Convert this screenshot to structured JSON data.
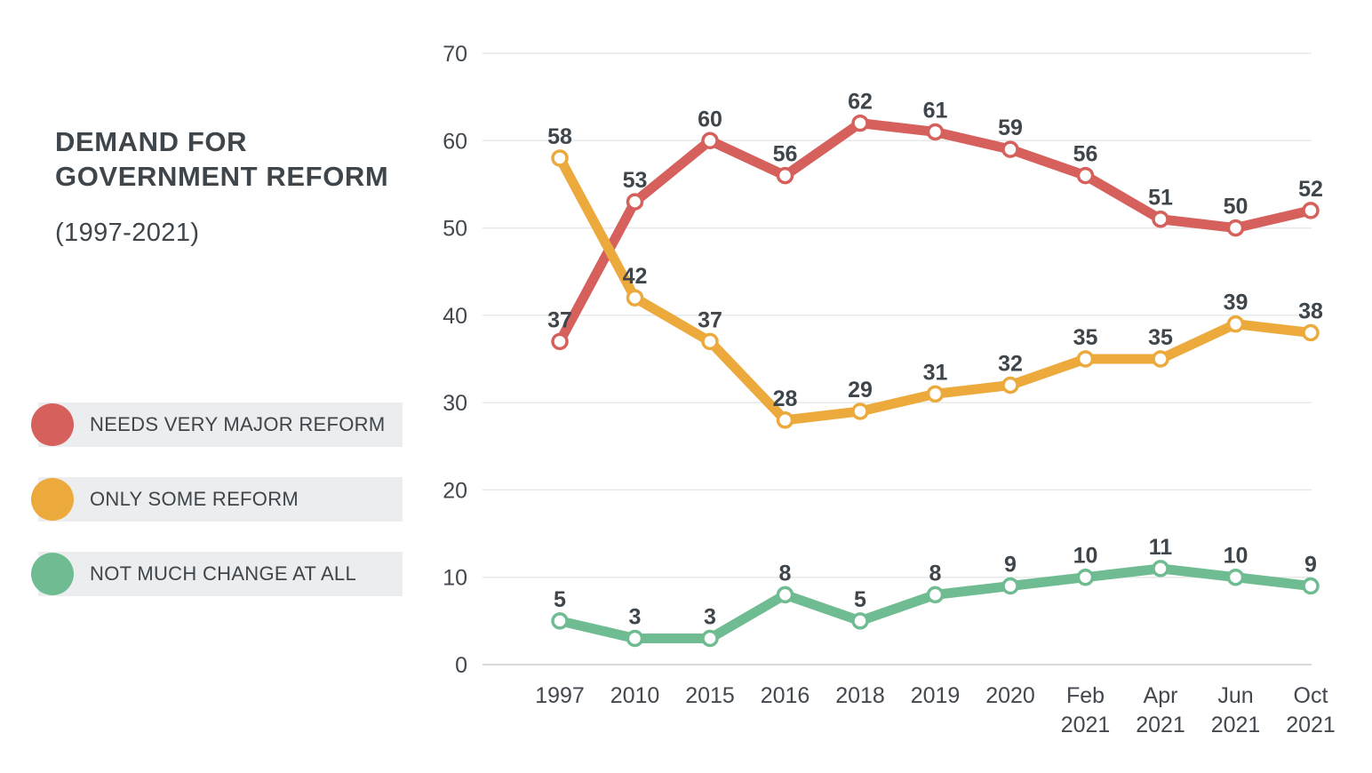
{
  "title": {
    "line1": "DEMAND FOR",
    "line2": "GOVERNMENT REFORM",
    "subtitle": "(1997-2021)"
  },
  "legend": [
    {
      "label": "NEEDS VERY MAJOR REFORM",
      "color": "#d5605c"
    },
    {
      "label": "ONLY SOME REFORM",
      "color": "#eca93c"
    },
    {
      "label": "NOT MUCH CHANGE AT ALL",
      "color": "#70bc92"
    }
  ],
  "colors": {
    "text_dark": "#3e454b",
    "tick_text": "#42484e",
    "gridline": "#e7e9ea",
    "axis_line": "#d7dadc",
    "legend_bar_bg": "#ebedee",
    "marker_fill": "#ffffff"
  },
  "chart_data": {
    "type": "line",
    "title": "DEMAND FOR GOVERNMENT REFORM",
    "subtitle": "(1997-2021)",
    "categories": [
      "1997",
      "2010",
      "2015",
      "2016",
      "2018",
      "2019",
      "2020",
      "Feb 2021",
      "Apr 2021",
      "Jun 2021",
      "Oct 2021"
    ],
    "series": [
      {
        "name": "NEEDS VERY MAJOR REFORM",
        "color": "#d5605c",
        "values": [
          37,
          53,
          60,
          56,
          62,
          61,
          59,
          56,
          51,
          50,
          52
        ]
      },
      {
        "name": "ONLY SOME REFORM",
        "color": "#eca93c",
        "values": [
          58,
          42,
          37,
          28,
          29,
          31,
          32,
          35,
          35,
          39,
          38
        ]
      },
      {
        "name": "NOT MUCH CHANGE AT ALL",
        "color": "#70bc92",
        "values": [
          5,
          3,
          3,
          8,
          5,
          8,
          9,
          10,
          11,
          10,
          9
        ]
      }
    ],
    "y_ticks": [
      0,
      10,
      20,
      30,
      40,
      50,
      60,
      70
    ],
    "ylim": [
      0,
      70
    ],
    "xlabel": "",
    "ylabel": "",
    "grid": true,
    "legend_position": "left",
    "data_labels": true
  }
}
